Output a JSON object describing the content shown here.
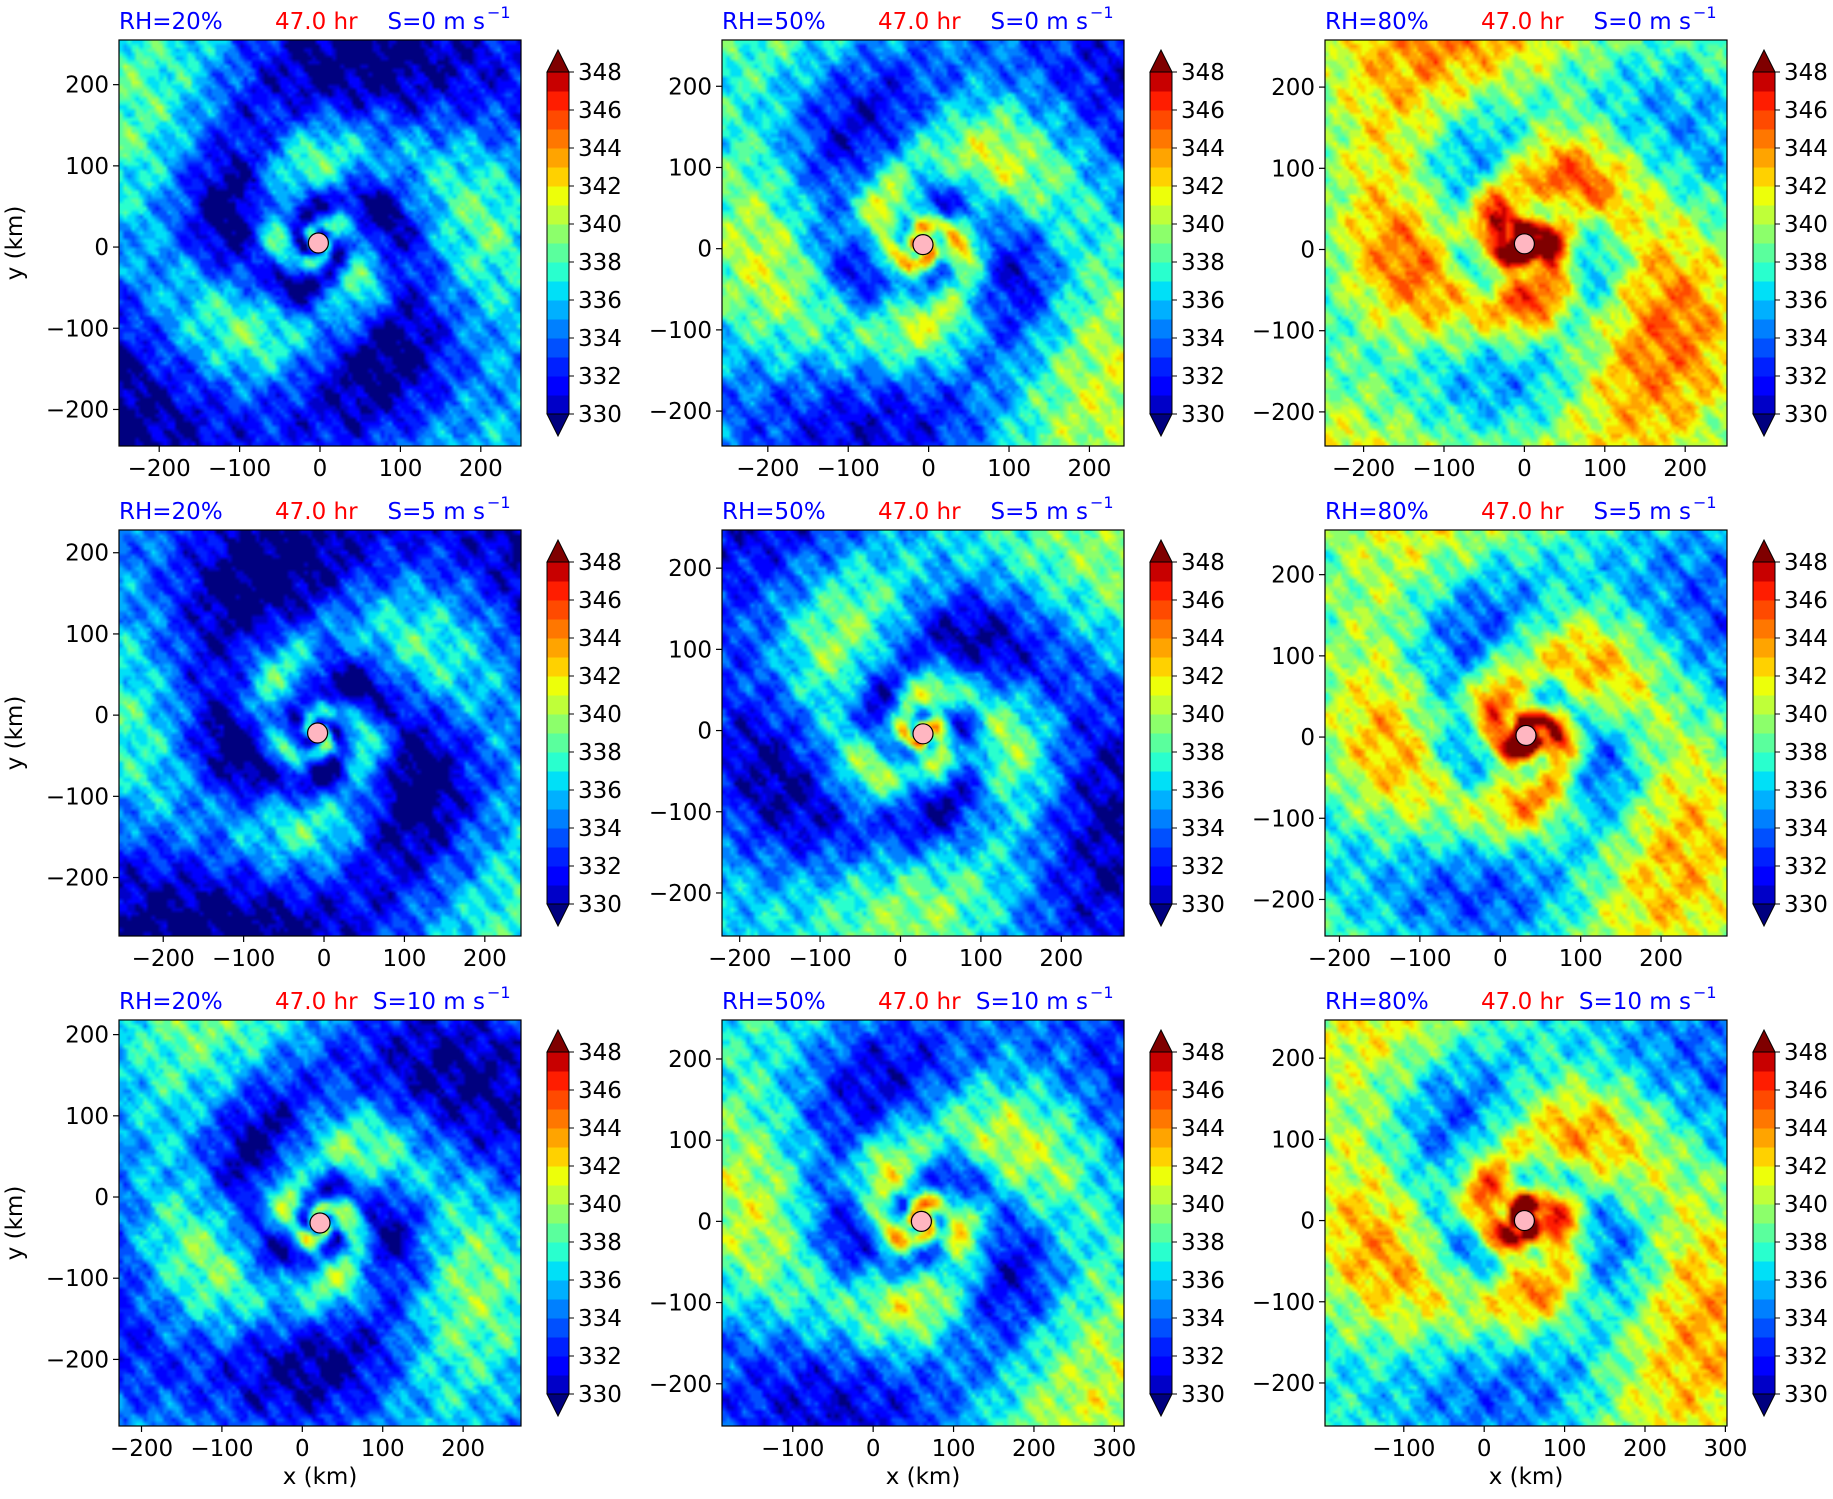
{
  "figure": {
    "panels": [
      {
        "rh": "RH=20%",
        "time": "47.0 hr",
        "shear": "S=0 m s",
        "shear_exp": "−1",
        "xticks": [
          "−200",
          "−100",
          "0",
          "100",
          "200"
        ],
        "xlim": [
          -250,
          250
        ],
        "xtick_values": [
          -200,
          -100,
          0,
          100,
          200
        ],
        "yticks": [
          "−200",
          "−100",
          "0",
          "100",
          "200"
        ],
        "ylim": [
          -245,
          255
        ],
        "ytick_values": [
          -200,
          -100,
          0,
          100,
          200
        ],
        "ylabel": "y (km)",
        "xlabel": "",
        "center": [
          -2,
          5
        ],
        "field_mean": 334.6,
        "core": 0.5
      },
      {
        "rh": "RH=50%",
        "time": "47.0 hr",
        "shear": "S=0 m s",
        "shear_exp": "−1",
        "xticks": [
          "−200",
          "−100",
          "0",
          "100",
          "200"
        ],
        "xlim": [
          -257,
          243
        ],
        "xtick_values": [
          -200,
          -100,
          0,
          100,
          200
        ],
        "yticks": [
          "−200",
          "−100",
          "0",
          "100",
          "200"
        ],
        "ylim": [
          -243,
          257
        ],
        "ytick_values": [
          -200,
          -100,
          0,
          100,
          200
        ],
        "ylabel": "",
        "xlabel": "",
        "center": [
          -7,
          5
        ],
        "field_mean": 336.8,
        "core": 4.5
      },
      {
        "rh": "RH=80%",
        "time": "47.0 hr",
        "shear": "S=0 m s",
        "shear_exp": "−1",
        "xticks": [
          "−200",
          "−100",
          "0",
          "100",
          "200"
        ],
        "xlim": [
          -248,
          252
        ],
        "xtick_values": [
          -200,
          -100,
          0,
          100,
          200
        ],
        "yticks": [
          "−200",
          "−100",
          "0",
          "100",
          "200"
        ],
        "ylim": [
          -242,
          258
        ],
        "ytick_values": [
          -200,
          -100,
          0,
          100,
          200
        ],
        "ylabel": "",
        "xlabel": "",
        "center": [
          0,
          7
        ],
        "field_mean": 341.0,
        "core": 9.5
      },
      {
        "rh": "RH=20%",
        "time": "47.0 hr",
        "shear": "S=5 m s",
        "shear_exp": "−1",
        "xticks": [
          "−200",
          "−100",
          "0",
          "100",
          "200"
        ],
        "xlim": [
          -255,
          245
        ],
        "xtick_values": [
          -200,
          -100,
          0,
          100,
          200
        ],
        "yticks": [
          "−200",
          "−100",
          "0",
          "100",
          "200"
        ],
        "ylim": [
          -272,
          228
        ],
        "ytick_values": [
          -200,
          -100,
          0,
          100,
          200
        ],
        "ylabel": "y (km)",
        "xlabel": "",
        "center": [
          -8,
          -22
        ],
        "field_mean": 334.0,
        "core": 1.5
      },
      {
        "rh": "RH=50%",
        "time": "47.0 hr",
        "shear": "S=5 m s",
        "shear_exp": "−1",
        "xticks": [
          "−200",
          "−100",
          "0",
          "100",
          "200"
        ],
        "xlim": [
          -222,
          278
        ],
        "xtick_values": [
          -200,
          -100,
          0,
          100,
          200
        ],
        "yticks": [
          "−200",
          "−100",
          "0",
          "100",
          "200"
        ],
        "ylim": [
          -253,
          247
        ],
        "ytick_values": [
          -200,
          -100,
          0,
          100,
          200
        ],
        "ylabel": "",
        "xlabel": "",
        "center": [
          28,
          -4
        ],
        "field_mean": 335.6,
        "core": 4.5
      },
      {
        "rh": "RH=80%",
        "time": "47.0 hr",
        "shear": "S=5 m s",
        "shear_exp": "−1",
        "xticks": [
          "−200",
          "−100",
          "0",
          "100",
          "200"
        ],
        "xlim": [
          -218,
          282
        ],
        "xtick_values": [
          -200,
          -100,
          0,
          100,
          200
        ],
        "yticks": [
          "−200",
          "−100",
          "0",
          "100",
          "200"
        ],
        "ylim": [
          -245,
          255
        ],
        "ytick_values": [
          -200,
          -100,
          0,
          100,
          200
        ],
        "ylabel": "",
        "xlabel": "",
        "center": [
          32,
          2
        ],
        "field_mean": 339.2,
        "core": 9.5
      },
      {
        "rh": "RH=20%",
        "time": "47.0 hr",
        "shear": "S=10 m s",
        "shear_exp": "−1",
        "xticks": [
          "−200",
          "−100",
          "0",
          "100",
          "200"
        ],
        "xlim": [
          -228,
          272
        ],
        "xtick_values": [
          -200,
          -100,
          0,
          100,
          200
        ],
        "yticks": [
          "−200",
          "−100",
          "0",
          "100",
          "200"
        ],
        "ylim": [
          -282,
          218
        ],
        "ytick_values": [
          -200,
          -100,
          0,
          100,
          200
        ],
        "ylabel": "y (km)",
        "xlabel": "x (km)",
        "center": [
          22,
          -32
        ],
        "field_mean": 335.4,
        "core": 2.0
      },
      {
        "rh": "RH=50%",
        "time": "47.0 hr",
        "shear": "S=10 m s",
        "shear_exp": "−1",
        "xticks": [
          "−100",
          "0",
          "100",
          "200",
          "300"
        ],
        "xlim": [
          -188,
          312
        ],
        "xtick_values": [
          -100,
          0,
          100,
          200,
          300
        ],
        "yticks": [
          "−200",
          "−100",
          "0",
          "100",
          "200"
        ],
        "ylim": [
          -252,
          248
        ],
        "ytick_values": [
          -200,
          -100,
          0,
          100,
          200
        ],
        "ylabel": "",
        "xlabel": "x (km)",
        "center": [
          60,
          0
        ],
        "field_mean": 336.8,
        "core": 4.0
      },
      {
        "rh": "RH=80%",
        "time": "47.0 hr",
        "shear": "S=10 m s",
        "shear_exp": "−1",
        "xticks": [
          "−100",
          "0",
          "100",
          "200",
          "300"
        ],
        "xlim": [
          -198,
          302
        ],
        "xtick_values": [
          -100,
          0,
          100,
          200,
          300
        ],
        "yticks": [
          "−200",
          "−100",
          "0",
          "100",
          "200"
        ],
        "ylim": [
          -253,
          247
        ],
        "ytick_values": [
          -200,
          -100,
          0,
          100,
          200
        ],
        "ylabel": "",
        "xlabel": "x (km)",
        "center": [
          50,
          0
        ],
        "field_mean": 339.6,
        "core": 9.5
      }
    ],
    "colorbar": {
      "ticks": [
        "330",
        "332",
        "334",
        "336",
        "338",
        "340",
        "342",
        "344",
        "346",
        "348"
      ],
      "tick_values": [
        330,
        332,
        334,
        336,
        338,
        340,
        342,
        344,
        346,
        348
      ],
      "levels": [
        330,
        331,
        332,
        333,
        334,
        335,
        336,
        337,
        338,
        339,
        340,
        341,
        342,
        343,
        344,
        345,
        346,
        347,
        348,
        349
      ],
      "colors": [
        "#00007F",
        "#0000C8",
        "#0000FF",
        "#0020FF",
        "#0050FF",
        "#0080FF",
        "#00B0FF",
        "#00E0F7",
        "#29FFCE",
        "#5AFF9D",
        "#8CFF6B",
        "#BFFF39",
        "#EDFF0A",
        "#FFD100",
        "#FFA400",
        "#FF7700",
        "#FF4A00",
        "#FF1D00",
        "#C80000",
        "#7F0000"
      ],
      "extend": "both",
      "cmap": "jet"
    },
    "colors": {
      "rh_label": "#0000FF",
      "time_label": "#FF0000",
      "shear_label": "#0000FF",
      "storm_marker": "#FFB6C1"
    }
  },
  "chart_data": [
    {
      "type": "heatmap",
      "title": "RH=20% 47.0 hr S=0 m s⁻¹",
      "xlabel": "",
      "ylabel": "y (km)",
      "xlim": [
        -250,
        250
      ],
      "ylim": [
        -245,
        255
      ],
      "zrange": [
        330,
        349
      ],
      "center": [
        -2,
        5
      ]
    },
    {
      "type": "heatmap",
      "title": "RH=50% 47.0 hr S=0 m s⁻¹",
      "xlabel": "",
      "ylabel": "",
      "xlim": [
        -257,
        243
      ],
      "ylim": [
        -243,
        257
      ],
      "zrange": [
        330,
        349
      ],
      "center": [
        -7,
        5
      ]
    },
    {
      "type": "heatmap",
      "title": "RH=80% 47.0 hr S=0 m s⁻¹",
      "xlabel": "",
      "ylabel": "",
      "xlim": [
        -248,
        252
      ],
      "ylim": [
        -242,
        258
      ],
      "zrange": [
        330,
        349
      ],
      "center": [
        0,
        7
      ]
    },
    {
      "type": "heatmap",
      "title": "RH=20% 47.0 hr S=5 m s⁻¹",
      "xlabel": "",
      "ylabel": "y (km)",
      "xlim": [
        -255,
        245
      ],
      "ylim": [
        -272,
        228
      ],
      "zrange": [
        330,
        349
      ],
      "center": [
        -8,
        -22
      ]
    },
    {
      "type": "heatmap",
      "title": "RH=50% 47.0 hr S=5 m s⁻¹",
      "xlabel": "",
      "ylabel": "",
      "xlim": [
        -222,
        278
      ],
      "ylim": [
        -253,
        247
      ],
      "zrange": [
        330,
        349
      ],
      "center": [
        28,
        -4
      ]
    },
    {
      "type": "heatmap",
      "title": "RH=80% 47.0 hr S=5 m s⁻¹",
      "xlabel": "",
      "ylabel": "",
      "xlim": [
        -218,
        282
      ],
      "ylim": [
        -245,
        255
      ],
      "zrange": [
        330,
        349
      ],
      "center": [
        32,
        2
      ]
    },
    {
      "type": "heatmap",
      "title": "RH=20% 47.0 hr S=10 m s⁻¹",
      "xlabel": "x (km)",
      "ylabel": "y (km)",
      "xlim": [
        -228,
        272
      ],
      "ylim": [
        -282,
        218
      ],
      "zrange": [
        330,
        349
      ],
      "center": [
        22,
        -32
      ]
    },
    {
      "type": "heatmap",
      "title": "RH=50% 47.0 hr S=10 m s⁻¹",
      "xlabel": "x (km)",
      "ylabel": "",
      "xlim": [
        -188,
        312
      ],
      "ylim": [
        -252,
        248
      ],
      "zrange": [
        330,
        349
      ],
      "center": [
        60,
        0
      ]
    },
    {
      "type": "heatmap",
      "title": "RH=80% 47.0 hr S=10 m s⁻¹",
      "xlabel": "x (km)",
      "ylabel": "",
      "xlim": [
        -198,
        302
      ],
      "ylim": [
        -253,
        247
      ],
      "zrange": [
        330,
        349
      ],
      "center": [
        50,
        0
      ]
    }
  ]
}
